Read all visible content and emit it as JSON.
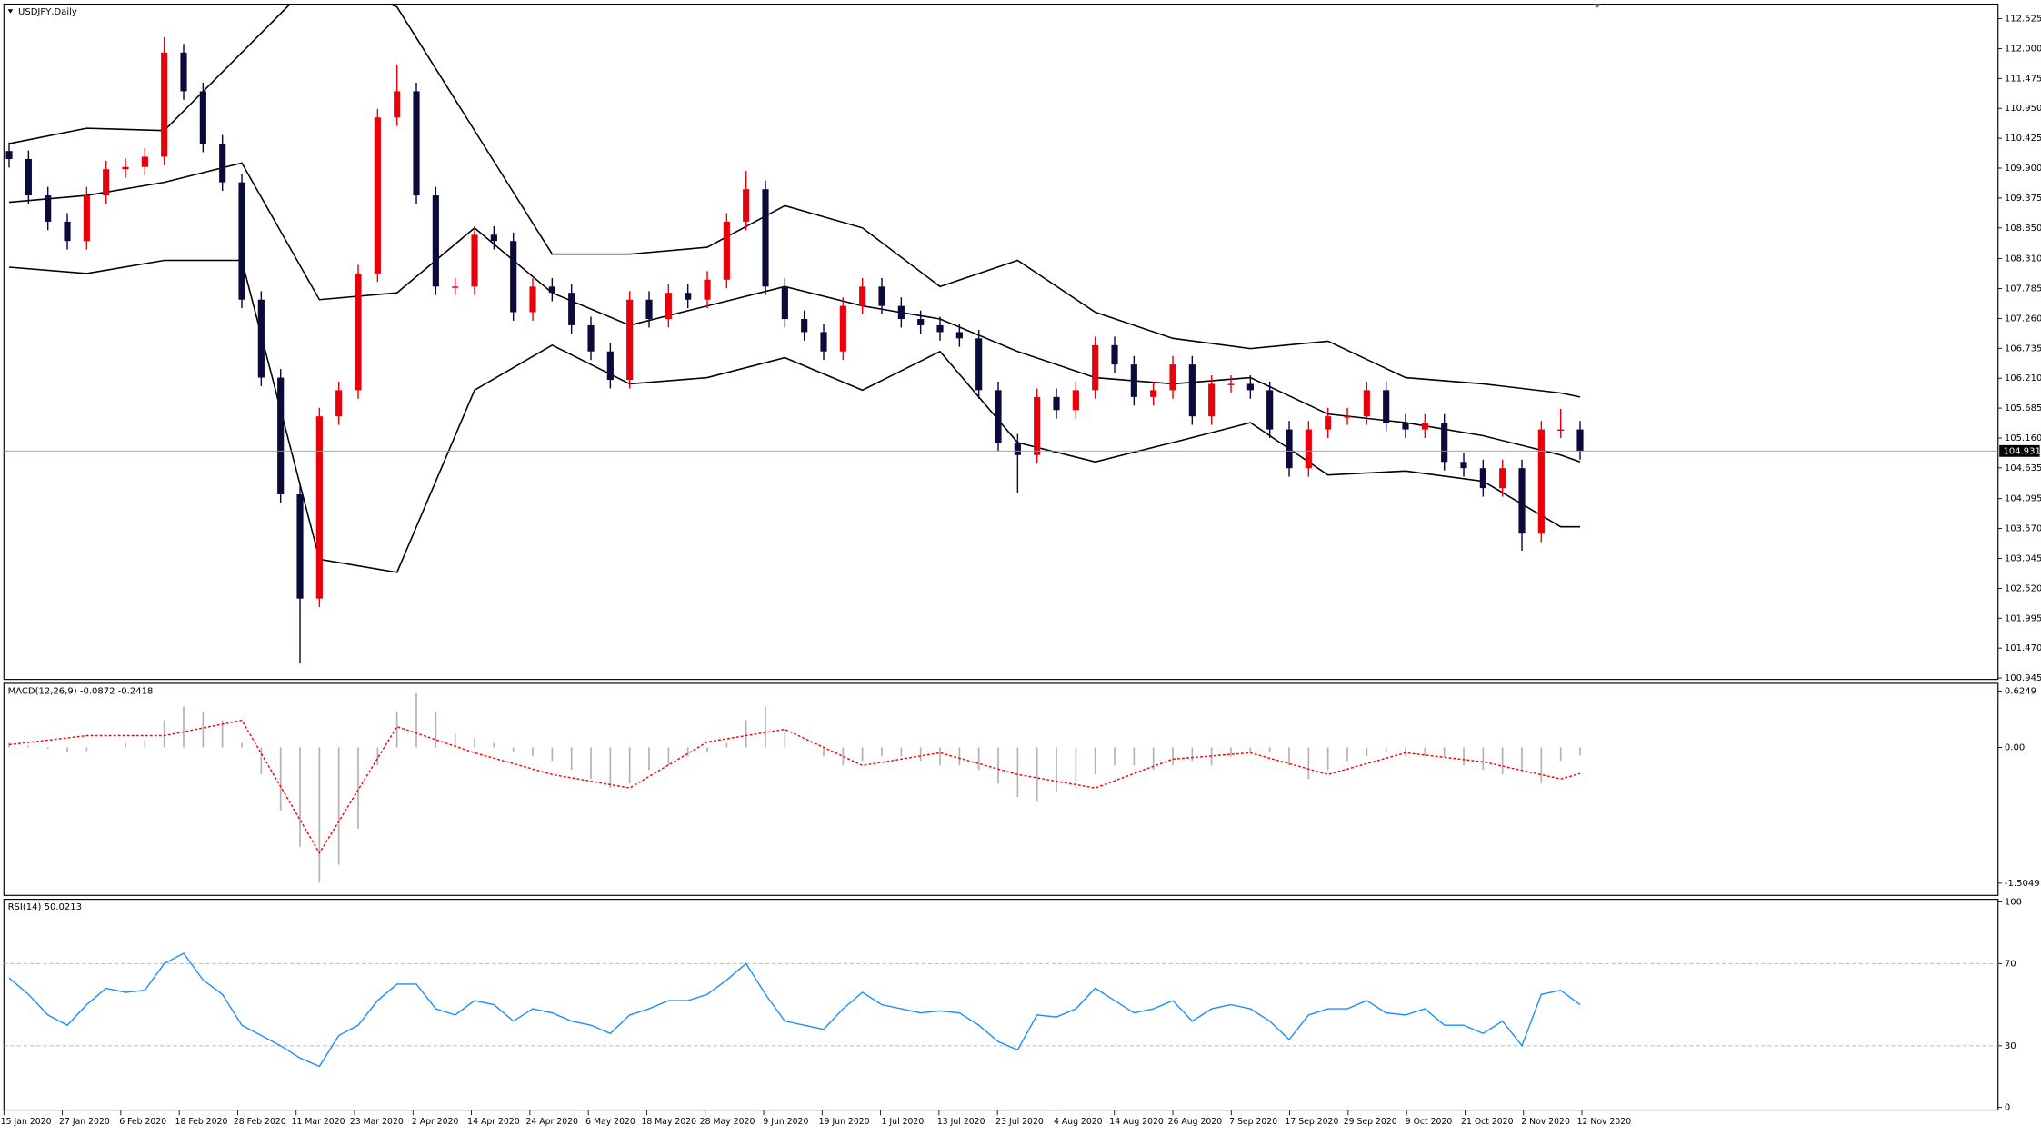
{
  "chart_data": [
    {
      "type": "candlestick",
      "title": "USDJPY,Daily",
      "open": [
        110.2,
        110.06,
        109.42,
        108.96,
        108.62,
        109.42,
        109.88,
        109.92,
        110.1,
        111.93,
        111.25,
        110.33,
        109.65,
        107.59,
        106.22,
        104.17,
        102.34,
        105.54,
        106.0,
        108.05,
        110.79,
        111.25,
        109.42,
        107.82,
        107.82,
        108.73,
        108.62,
        107.37,
        107.82,
        107.71,
        107.14,
        106.68,
        106.18,
        107.59,
        107.25,
        107.71,
        107.59,
        107.94,
        108.96,
        109.53,
        107.82,
        107.25,
        107.02,
        106.68,
        107.48,
        107.82,
        107.48,
        107.25,
        107.14,
        107.02,
        106.91,
        106.0,
        105.08,
        104.86,
        105.88,
        105.65,
        106.0,
        106.79,
        106.45,
        105.88,
        106.0,
        106.45,
        105.54,
        106.11,
        106.11,
        106.0,
        105.31,
        104.63,
        105.31,
        105.54,
        105.54,
        106.0,
        105.43,
        105.31,
        105.43,
        104.74,
        104.63,
        104.28,
        104.63,
        103.48,
        105.31,
        105.31
      ],
      "high": [
        110.35,
        110.21,
        109.57,
        109.11,
        109.57,
        110.03,
        110.07,
        110.25,
        112.2,
        112.08,
        111.4,
        110.48,
        109.8,
        107.74,
        106.37,
        104.32,
        105.69,
        106.15,
        108.2,
        110.94,
        111.71,
        111.4,
        109.57,
        107.97,
        108.88,
        108.88,
        108.77,
        107.97,
        107.97,
        107.86,
        107.29,
        106.83,
        107.74,
        107.74,
        107.86,
        107.86,
        108.09,
        109.11,
        109.85,
        109.68,
        107.97,
        107.4,
        107.17,
        107.63,
        107.97,
        107.97,
        107.63,
        107.4,
        107.29,
        107.17,
        107.06,
        106.15,
        105.23,
        106.03,
        106.03,
        106.15,
        106.94,
        106.94,
        106.6,
        106.15,
        106.6,
        106.6,
        106.26,
        106.26,
        106.26,
        106.15,
        105.46,
        105.46,
        105.69,
        105.69,
        106.15,
        106.15,
        105.58,
        105.58,
        105.58,
        104.89,
        104.78,
        104.78,
        104.78,
        105.46,
        105.67,
        105.46
      ],
      "low": [
        109.91,
        109.27,
        108.81,
        108.47,
        108.47,
        109.27,
        109.73,
        109.77,
        109.95,
        111.1,
        110.18,
        109.5,
        107.44,
        106.07,
        104.02,
        101.2,
        102.19,
        105.39,
        105.85,
        107.9,
        110.64,
        109.27,
        107.67,
        107.67,
        107.67,
        108.47,
        107.22,
        107.22,
        107.56,
        106.99,
        106.53,
        106.03,
        106.03,
        107.1,
        107.1,
        107.44,
        107.44,
        107.79,
        108.81,
        107.67,
        107.1,
        106.87,
        106.53,
        106.53,
        107.33,
        107.33,
        107.1,
        106.99,
        106.87,
        106.76,
        105.85,
        104.93,
        104.19,
        104.71,
        105.5,
        105.5,
        105.85,
        106.3,
        105.73,
        105.73,
        105.85,
        105.39,
        105.39,
        105.96,
        105.85,
        105.16,
        104.48,
        104.48,
        105.16,
        105.39,
        105.39,
        105.28,
        105.16,
        105.16,
        104.59,
        104.48,
        104.13,
        104.13,
        103.18,
        103.33,
        105.16,
        104.78
      ],
      "close": [
        110.06,
        109.42,
        108.96,
        108.62,
        109.42,
        109.88,
        109.92,
        110.1,
        111.93,
        111.25,
        110.33,
        109.65,
        107.59,
        106.22,
        104.17,
        102.34,
        105.54,
        106.0,
        108.05,
        110.79,
        111.25,
        109.42,
        107.82,
        107.82,
        108.73,
        108.62,
        107.37,
        107.82,
        107.71,
        107.14,
        106.68,
        106.18,
        107.59,
        107.25,
        107.71,
        107.59,
        107.94,
        108.96,
        109.53,
        107.82,
        107.25,
        107.02,
        106.68,
        107.48,
        107.82,
        107.48,
        107.25,
        107.14,
        107.02,
        106.91,
        106.0,
        105.08,
        104.86,
        105.88,
        105.65,
        106.0,
        106.79,
        106.45,
        105.88,
        106.0,
        106.45,
        105.54,
        106.11,
        106.11,
        106.0,
        105.31,
        104.63,
        105.31,
        105.54,
        105.54,
        106.0,
        105.43,
        105.31,
        105.43,
        104.74,
        104.63,
        104.28,
        104.63,
        103.48,
        105.31,
        105.31,
        104.93
      ],
      "color_up": "#e8000b",
      "color_down": "#0b0b3b",
      "bands": {
        "x": [
          0,
          4,
          8,
          12,
          16,
          20,
          24,
          28,
          32,
          36,
          40,
          44,
          48,
          52,
          56,
          60,
          64,
          68,
          72,
          76,
          80,
          81
        ],
        "upper": [
          110.33,
          110.6,
          110.56,
          111.93,
          113.3,
          112.73,
          110.56,
          108.39,
          108.39,
          108.51,
          109.24,
          108.85,
          107.82,
          108.28,
          107.37,
          106.91,
          106.73,
          106.86,
          106.22,
          106.11,
          105.95,
          105.88
        ],
        "middle": [
          109.3,
          109.42,
          109.65,
          109.99,
          107.59,
          107.71,
          108.85,
          107.71,
          107.14,
          107.48,
          107.82,
          107.48,
          107.25,
          106.68,
          106.22,
          106.11,
          106.22,
          105.58,
          105.43,
          105.2,
          104.86,
          104.74
        ],
        "lower": [
          108.16,
          108.05,
          108.28,
          108.28,
          103.03,
          102.8,
          106.0,
          106.79,
          106.11,
          106.22,
          106.57,
          106.0,
          106.68,
          105.08,
          104.74,
          105.08,
          105.43,
          104.51,
          104.58,
          104.4,
          103.6,
          103.6
        ],
        "color": "#000000"
      },
      "current_price": 104.931,
      "ylim": [
        100.92,
        112.78
      ],
      "yticks": [
        112.525,
        {
          "value": 112.0,
          "label": "112.000"
        },
        {
          "value": 111.475,
          "label": "111.475"
        },
        {
          "value": 110.95,
          "label": "110.950"
        },
        110.425,
        {
          "value": 109.9,
          "label": "109.900"
        },
        109.375,
        {
          "value": 108.85,
          "label": "108.850"
        },
        {
          "value": 108.31,
          "label": "108.310"
        },
        107.785,
        {
          "value": 107.26,
          "label": "107.260"
        },
        106.735,
        {
          "value": 106.21,
          "label": "106.210"
        },
        105.685,
        {
          "value": 105.16,
          "label": "105.160"
        },
        104.635,
        104.095,
        {
          "value": 103.57,
          "label": "103.570"
        },
        103.045,
        {
          "value": 102.52,
          "label": "102.520"
        },
        101.995,
        {
          "value": 101.47,
          "label": "101.470"
        },
        100.945
      ],
      "x_labels": [
        "15 Jan 2020",
        "27 Jan 2020",
        "6 Feb 2020",
        "18 Feb 2020",
        "28 Feb 2020",
        "11 Mar 2020",
        "23 Mar 2020",
        "2 Apr 2020",
        "14 Apr 2020",
        "24 Apr 2020",
        "6 May 2020",
        "18 May 2020",
        "28 May 2020",
        "9 Jun 2020",
        "19 Jun 2020",
        "1 Jul 2020",
        "13 Jul 2020",
        "23 Jul 2020",
        "4 Aug 2020",
        "14 Aug 2020",
        "26 Aug 2020",
        "7 Sep 2020",
        "17 Sep 2020",
        "29 Sep 2020",
        "9 Oct 2020",
        "21 Oct 2020",
        "2 Nov 2020",
        "12 Nov 2020"
      ]
    },
    {
      "type": "macd",
      "title": "MACD(12,26,9) -0.0872 -0.2418",
      "histogram": [
        0.05,
        0.02,
        -0.02,
        -0.05,
        -0.04,
        0.0,
        0.05,
        0.08,
        0.3,
        0.45,
        0.4,
        0.3,
        0.05,
        -0.3,
        -0.7,
        -1.1,
        -1.5,
        -1.3,
        -0.9,
        -0.2,
        0.4,
        0.6,
        0.4,
        0.15,
        0.1,
        0.05,
        -0.05,
        -0.1,
        -0.15,
        -0.25,
        -0.35,
        -0.45,
        -0.4,
        -0.25,
        -0.2,
        -0.1,
        -0.05,
        0.05,
        0.3,
        0.45,
        0.2,
        0.0,
        -0.1,
        -0.2,
        -0.15,
        -0.1,
        -0.1,
        -0.15,
        -0.2,
        -0.2,
        -0.25,
        -0.4,
        -0.55,
        -0.6,
        -0.5,
        -0.45,
        -0.3,
        -0.2,
        -0.2,
        -0.25,
        -0.2,
        -0.15,
        -0.2,
        -0.1,
        -0.05,
        -0.05,
        -0.2,
        -0.35,
        -0.25,
        -0.15,
        -0.1,
        -0.05,
        -0.1,
        -0.1,
        -0.1,
        -0.2,
        -0.25,
        -0.3,
        -0.25,
        -0.4,
        -0.15,
        -0.09
      ],
      "histogram_color": "#b4b4b4",
      "signal": {
        "x": [
          0,
          4,
          8,
          12,
          16,
          20,
          24,
          28,
          32,
          36,
          40,
          44,
          48,
          52,
          56,
          60,
          64,
          68,
          72,
          76,
          80,
          81
        ],
        "values": [
          0.03,
          0.13,
          0.13,
          0.3,
          -1.17,
          0.23,
          -0.06,
          -0.3,
          -0.45,
          0.06,
          0.2,
          -0.2,
          -0.06,
          -0.3,
          -0.45,
          -0.13,
          -0.06,
          -0.3,
          -0.06,
          -0.16,
          -0.35,
          -0.29
        ],
        "color": "#ff0000"
      },
      "ylim": [
        -1.64,
        0.71
      ],
      "yticks": [
        0.6249,
        {
          "value": 0,
          "label": "0.00"
        },
        -1.5049
      ]
    },
    {
      "type": "line",
      "title": "RSI(14) 50.0213",
      "values": [
        63,
        55,
        45,
        40,
        50,
        58,
        56,
        57,
        70,
        75,
        62,
        55,
        40,
        35,
        30,
        24,
        20,
        35,
        40,
        52,
        60,
        60,
        48,
        45,
        52,
        50,
        42,
        48,
        46,
        42,
        40,
        36,
        45,
        48,
        52,
        52,
        55,
        62,
        70,
        55,
        42,
        40,
        38,
        48,
        56,
        50,
        48,
        46,
        47,
        46,
        40,
        32,
        28,
        45,
        44,
        48,
        58,
        52,
        46,
        48,
        52,
        42,
        48,
        50,
        48,
        42,
        33,
        45,
        48,
        48,
        52,
        46,
        45,
        48,
        40,
        40,
        36,
        42,
        30,
        55,
        57,
        50
      ],
      "color": "#1e90ff",
      "levels": [
        70,
        30
      ],
      "ylim": [
        0,
        100
      ],
      "yticks": [
        100,
        70,
        30,
        0
      ]
    }
  ]
}
